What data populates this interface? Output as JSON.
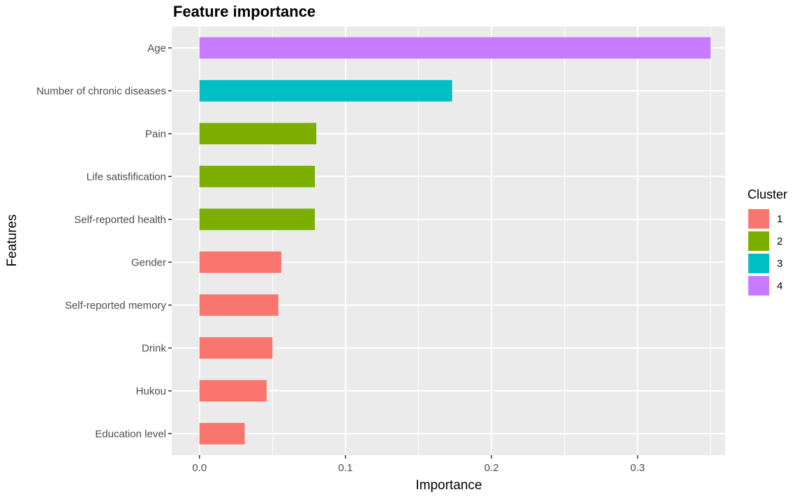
{
  "chart_data": {
    "type": "bar",
    "orientation": "horizontal",
    "title": "Feature importance",
    "xlabel": "Importance",
    "ylabel": "Features",
    "xlim": [
      -0.019,
      0.36
    ],
    "x_ticks": [
      0.0,
      0.1,
      0.2,
      0.3
    ],
    "x_tick_labels": [
      "0.0",
      "0.1",
      "0.2",
      "0.3"
    ],
    "grid": true,
    "categories": [
      "Age",
      "Number of chronic diseases",
      "Pain",
      "Life satisfification",
      "Self-reported health",
      "Gender",
      "Self-reported memory",
      "Drink",
      "Hukou",
      "Education level"
    ],
    "values": [
      0.35,
      0.173,
      0.08,
      0.079,
      0.079,
      0.056,
      0.054,
      0.05,
      0.046,
      0.031
    ],
    "cluster": [
      "4",
      "3",
      "2",
      "2",
      "2",
      "1",
      "1",
      "1",
      "1",
      "1"
    ],
    "legend": {
      "title": "Cluster",
      "placement": "right",
      "entries": [
        {
          "label": "1",
          "color": "#F8766D"
        },
        {
          "label": "2",
          "color": "#7CAE00"
        },
        {
          "label": "3",
          "color": "#00BFC4"
        },
        {
          "label": "4",
          "color": "#C77CFF"
        }
      ]
    }
  },
  "colors": {
    "panel_background": "#EBEBEB",
    "grid": "#FFFFFF",
    "tick_text": "#4D4D4D"
  }
}
